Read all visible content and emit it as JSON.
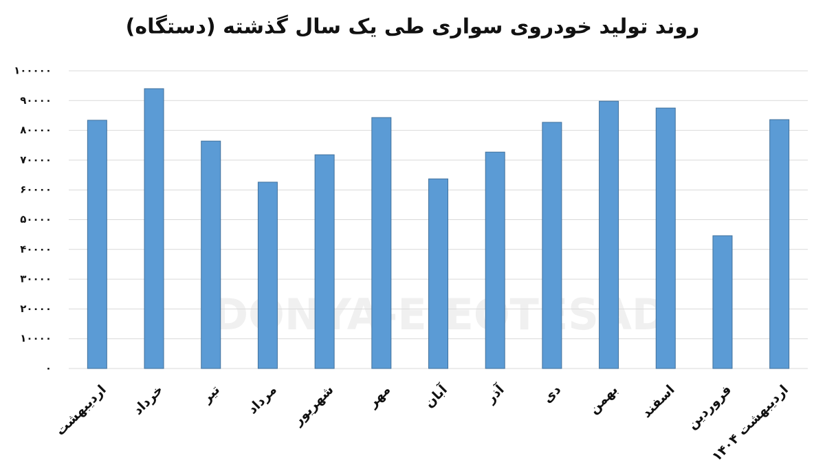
{
  "chart_data": {
    "type": "bar",
    "title": "روند تولید خودروی سواری طی یک سال گذشته (دستگاه)",
    "watermark": "DONYA-E-EQTESAD",
    "categories": [
      "اردیبهشت",
      "خرداد",
      "تیر",
      "مرداد",
      "شهریور",
      "مهر",
      "آبان",
      "آذر",
      "دی",
      "بهمن",
      "اسفند",
      "فروردین",
      "اردیبهشت ۱۴۰۴"
    ],
    "values": [
      83400,
      94000,
      76400,
      62600,
      71800,
      84300,
      63700,
      72700,
      82700,
      89800,
      87500,
      44600,
      83600
    ],
    "color": "#5b9bd5",
    "ylim": [
      0,
      100000
    ],
    "yticks": [
      {
        "value": 0,
        "label": "۰"
      },
      {
        "value": 10000,
        "label": "۱۰۰۰۰"
      },
      {
        "value": 20000,
        "label": "۲۰۰۰۰"
      },
      {
        "value": 30000,
        "label": "۳۰۰۰۰"
      },
      {
        "value": 40000,
        "label": "۴۰۰۰۰"
      },
      {
        "value": 50000,
        "label": "۵۰۰۰۰"
      },
      {
        "value": 60000,
        "label": "۶۰۰۰۰"
      },
      {
        "value": 70000,
        "label": "۷۰۰۰۰"
      },
      {
        "value": 80000,
        "label": "۸۰۰۰۰"
      },
      {
        "value": 90000,
        "label": "۹۰۰۰۰"
      },
      {
        "value": 100000,
        "label": "۱۰۰۰۰۰"
      }
    ],
    "grid": true
  }
}
